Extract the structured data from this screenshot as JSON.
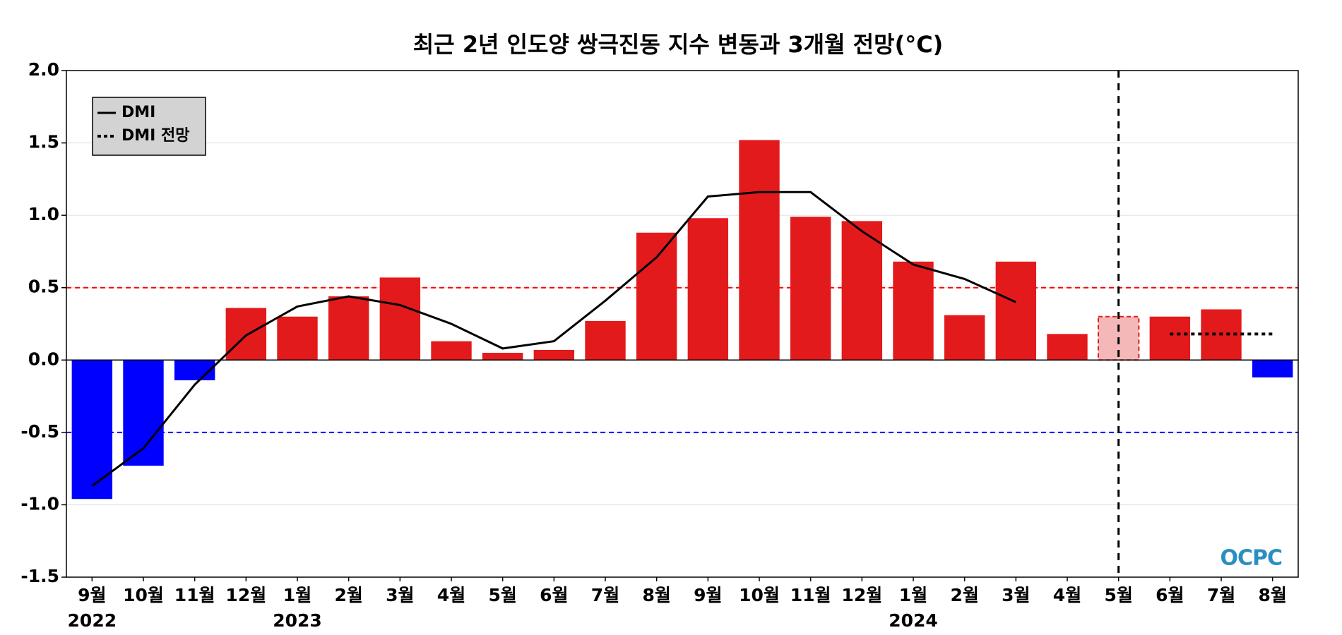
{
  "chart_data": {
    "type": "bar",
    "title": "최근 2년 인도양 쌍극진동 지수 변동과 3개월 전망(°C)",
    "categories": [
      "9월",
      "10월",
      "11월",
      "12월",
      "1월",
      "2월",
      "3월",
      "4월",
      "5월",
      "6월",
      "7월",
      "8월",
      "9월",
      "10월",
      "11월",
      "12월",
      "1월",
      "2월",
      "3월",
      "4월",
      "5월",
      "6월",
      "7월",
      "8월"
    ],
    "years": [
      "2022",
      null,
      null,
      null,
      "2023",
      null,
      null,
      null,
      null,
      null,
      null,
      null,
      null,
      null,
      null,
      null,
      "2024",
      null,
      null,
      null,
      null,
      null,
      null,
      null
    ],
    "values": [
      -0.96,
      -0.73,
      -0.14,
      0.36,
      0.3,
      0.44,
      0.57,
      0.13,
      0.05,
      0.07,
      0.27,
      0.88,
      0.98,
      1.52,
      0.99,
      0.96,
      0.68,
      0.31,
      0.68,
      0.18,
      0.3,
      0.3,
      0.35,
      -0.12
    ],
    "colors": [
      "#0000ff",
      "#0000ff",
      "#0000ff",
      "#e31a1c",
      "#e31a1c",
      "#e31a1c",
      "#e31a1c",
      "#e31a1c",
      "#e31a1c",
      "#e31a1c",
      "#e31a1c",
      "#e31a1c",
      "#e31a1c",
      "#e31a1c",
      "#e31a1c",
      "#e31a1c",
      "#e31a1c",
      "#e31a1c",
      "#e31a1c",
      "#e31a1c",
      "#f4b8b8",
      "#e31a1c",
      "#e31a1c",
      "#0000ff"
    ],
    "lines": [
      {
        "name": "DMI",
        "color": "#000000",
        "style": "solid",
        "values": [
          -0.87,
          -0.61,
          -0.17,
          0.17,
          0.37,
          0.44,
          0.38,
          0.25,
          0.08,
          0.13,
          0.41,
          0.71,
          1.13,
          1.16,
          1.16,
          0.89,
          0.66,
          0.56,
          0.4,
          null,
          null,
          null,
          null,
          null
        ]
      },
      {
        "name": "DMI 전망",
        "color": "#000000",
        "style": "dotted",
        "values": [
          null,
          null,
          null,
          null,
          null,
          null,
          null,
          null,
          null,
          null,
          null,
          null,
          null,
          null,
          null,
          null,
          null,
          null,
          null,
          null,
          null,
          0.18,
          0.18,
          0.18
        ]
      }
    ],
    "hlines": [
      {
        "value": 0.5,
        "color": "#ff0000"
      },
      {
        "value": -0.5,
        "color": "#0000ff"
      }
    ],
    "vline_at": 20,
    "ylim": [
      -1.5,
      2.0
    ],
    "yticks": [
      {
        "value": -1.5,
        "label": "-1.5"
      },
      {
        "value": -1.0,
        "label": "-1.0"
      },
      {
        "value": -0.5,
        "label": "-0.5"
      },
      {
        "value": 0,
        "label": "0.0"
      },
      {
        "value": 0.5,
        "label": "0.5"
      },
      {
        "value": 1.0,
        "label": "1.0"
      },
      {
        "value": 1.5,
        "label": "1.5"
      },
      {
        "value": 2.0,
        "label": "2.0"
      }
    ],
    "grid": true,
    "legend": "upper left",
    "logo": "OCPC"
  }
}
